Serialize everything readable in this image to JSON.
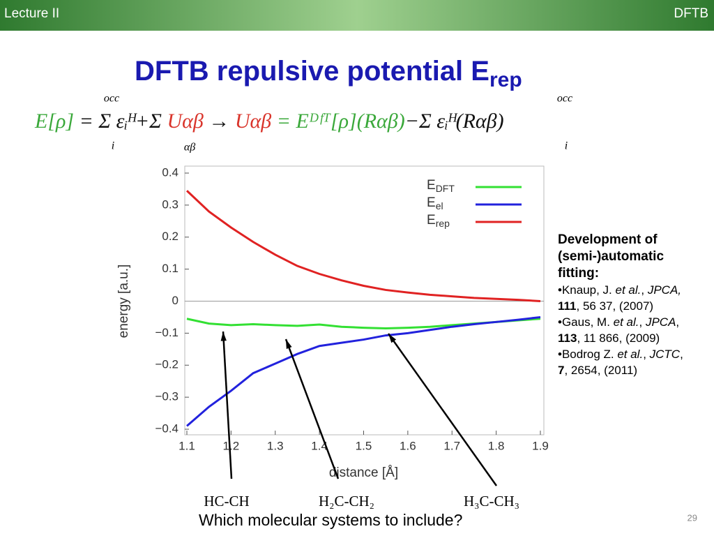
{
  "header": {
    "left": "Lecture II",
    "right": "DFTB"
  },
  "title": "DFTB repulsive potential E",
  "title_sub": "rep",
  "equation": [
    {
      "t": "E[ρ]",
      "c": "#3aa83a"
    },
    {
      "t": " = Σ εᵢᴴ+Σ ",
      "c": "#111111"
    },
    {
      "t": "Uαβ",
      "c": "#d9342b"
    },
    {
      "t": "   →   ",
      "c": "#111111"
    },
    {
      "t": "Uαβ",
      "c": "#d9342b"
    },
    {
      "t": " = ",
      "c": "#3aa83a"
    },
    {
      "t": "Eᴰᶠᵀ[ρ](Rαβ)",
      "c": "#3aa83a"
    },
    {
      "t": "−Σ εᵢᴴ(Rαβ)",
      "c": "#111111"
    }
  ],
  "sum_labels": [
    "occ",
    "i",
    "αβ",
    "occ",
    "i"
  ],
  "chart_data": {
    "type": "line",
    "xlabel": "distance [Å]",
    "ylabel": "energy [a.u.]",
    "x": [
      1.1,
      1.15,
      1.2,
      1.25,
      1.3,
      1.35,
      1.4,
      1.45,
      1.5,
      1.55,
      1.6,
      1.65,
      1.7,
      1.75,
      1.8,
      1.85,
      1.9
    ],
    "series": [
      {
        "name": "E",
        "name_sub": "DFT",
        "color": "#33e033",
        "values": [
          -0.055,
          -0.07,
          -0.075,
          -0.072,
          -0.075,
          -0.077,
          -0.073,
          -0.08,
          -0.083,
          -0.085,
          -0.083,
          -0.08,
          -0.075,
          -0.07,
          -0.065,
          -0.06,
          -0.055
        ]
      },
      {
        "name": "E",
        "name_sub": "el",
        "color": "#2222dd",
        "values": [
          -0.39,
          -0.33,
          -0.28,
          -0.225,
          -0.195,
          -0.165,
          -0.14,
          -0.13,
          -0.12,
          -0.107,
          -0.1,
          -0.09,
          -0.08,
          -0.072,
          -0.065,
          -0.058,
          -0.05
        ]
      },
      {
        "name": "E",
        "name_sub": "rep",
        "color": "#e02222",
        "values": [
          0.345,
          0.28,
          0.23,
          0.185,
          0.145,
          0.11,
          0.085,
          0.065,
          0.048,
          0.035,
          0.027,
          0.02,
          0.015,
          0.01,
          0.007,
          0.004,
          0.0
        ]
      }
    ],
    "xlim": [
      1.1,
      1.9
    ],
    "xticks": [
      1.1,
      1.2,
      1.3,
      1.4,
      1.5,
      1.6,
      1.7,
      1.8,
      1.9
    ],
    "ylim": [
      -0.4,
      0.4
    ],
    "yticks": [
      {
        "value": -0.4,
        "label": "−0.4"
      },
      {
        "value": -0.3,
        "label": "−0.3"
      },
      {
        "value": -0.2,
        "label": "−0.2"
      },
      {
        "value": -0.1,
        "label": "−0.1"
      },
      0,
      0.1,
      0.2,
      0.3,
      0.4
    ],
    "hline": 0,
    "legend": "upper right"
  },
  "molecules": [
    "HC-CH",
    "H₂C-CH₂",
    "H₃C-CH₃"
  ],
  "question": "Which molecular systems to include?",
  "side": {
    "heading": "Development of (semi-)automatic fitting:",
    "refs": [
      [
        {
          "t": "•Knaup, J. "
        },
        {
          "t": "et al.",
          "i": true
        },
        {
          "t": ", "
        },
        {
          "t": "JPCA,",
          "i": true
        },
        {
          "t": " "
        },
        {
          "t": "111",
          "b": true
        },
        {
          "t": ", 56 37, (2007)"
        }
      ],
      [
        {
          "t": "•Gaus, M. "
        },
        {
          "t": "et al.",
          "i": true
        },
        {
          "t": ", "
        },
        {
          "t": "JPCA",
          "i": true
        },
        {
          "t": ", "
        },
        {
          "t": "113",
          "b": true
        },
        {
          "t": ", 11 866, (2009)"
        }
      ],
      [
        {
          "t": "•Bodrog Z. "
        },
        {
          "t": "et al.",
          "i": true
        },
        {
          "t": ", "
        },
        {
          "t": "JCTC",
          "i": true
        },
        {
          "t": ", "
        },
        {
          "t": "7",
          "b": true
        },
        {
          "t": ", 2654, (2011)"
        }
      ]
    ]
  },
  "page_number": "29"
}
